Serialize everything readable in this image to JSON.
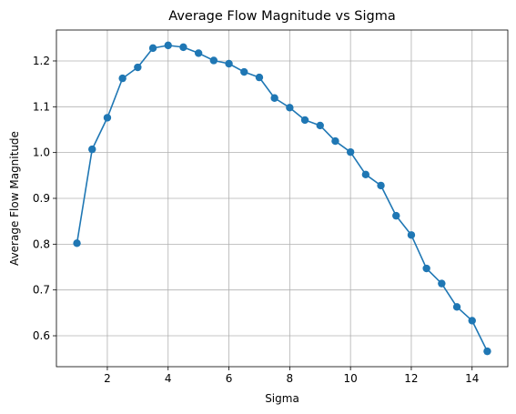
{
  "chart_data": {
    "type": "line",
    "title": "Average Flow Magnitude vs Sigma",
    "xlabel": "Sigma",
    "ylabel": "Average Flow Magnitude",
    "xlim": [
      0.325,
      15.175
    ],
    "ylim": [
      0.5325,
      1.2675
    ],
    "xticks": [
      2,
      4,
      6,
      8,
      10,
      12,
      14
    ],
    "xtick_labels": [
      "2",
      "4",
      "6",
      "8",
      "10",
      "12",
      "14"
    ],
    "yticks": [
      0.6,
      0.7,
      0.8,
      0.9,
      1.0,
      1.1,
      1.2
    ],
    "ytick_labels": [
      "0.6",
      "0.7",
      "0.8",
      "0.9",
      "1.0",
      "1.1",
      "1.2"
    ],
    "grid": true,
    "line_color": "#1f77b4",
    "marker": "circle",
    "series": [
      {
        "x": [
          1.0,
          1.5,
          2.0,
          2.5,
          3.0,
          3.5,
          4.0,
          4.5,
          5.0,
          5.5,
          6.0,
          6.5,
          7.0,
          7.5,
          8.0,
          8.5,
          9.0,
          9.5,
          10.0,
          10.5,
          11.0,
          11.5,
          12.0,
          12.5,
          13.0,
          13.5,
          14.0,
          14.5
        ],
        "values": [
          0.802,
          1.007,
          1.076,
          1.162,
          1.186,
          1.228,
          1.234,
          1.23,
          1.217,
          1.201,
          1.194,
          1.176,
          1.164,
          1.119,
          1.098,
          1.071,
          1.059,
          1.025,
          1.001,
          0.952,
          0.928,
          0.862,
          0.82,
          0.747,
          0.714,
          0.663,
          0.633,
          0.566
        ]
      }
    ]
  }
}
